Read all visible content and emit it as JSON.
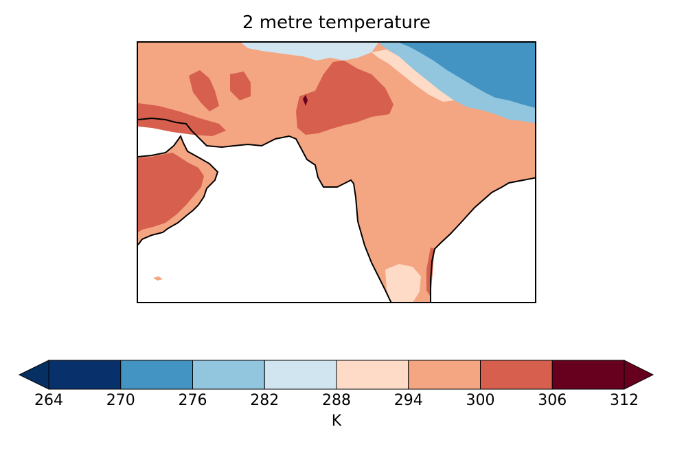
{
  "title": "2 metre temperature",
  "colorbar": {
    "unit": "K",
    "ticks": [
      "264",
      "270",
      "276",
      "282",
      "288",
      "294",
      "300",
      "306",
      "312"
    ],
    "levels": [
      {
        "range": "264-270",
        "color": "#08306b"
      },
      {
        "range": "270-276",
        "color": "#4393c3"
      },
      {
        "range": "276-282",
        "color": "#92c5de"
      },
      {
        "range": "282-288",
        "color": "#d1e5f0"
      },
      {
        "range": "288-294",
        "color": "#fddbc7"
      },
      {
        "range": "294-300",
        "color": "#f4a582"
      },
      {
        "range": "300-306",
        "color": "#d6604d"
      },
      {
        "range": "306-312",
        "color": "#67001f"
      }
    ],
    "extend_low_color": "#053061",
    "extend_high_color": "#67001f"
  }
}
